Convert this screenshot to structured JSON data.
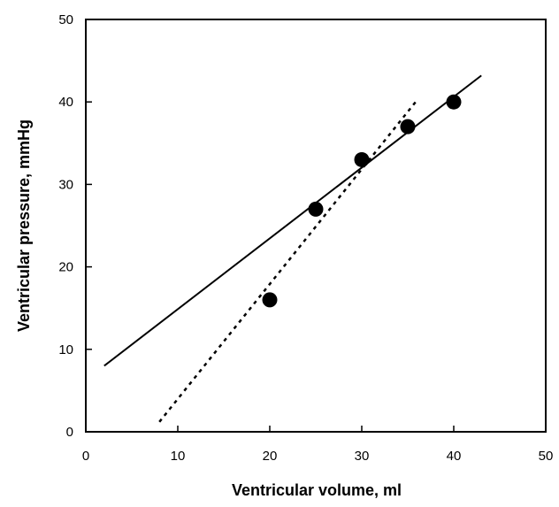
{
  "chart_data": {
    "type": "scatter",
    "title": "",
    "xlabel": "Ventricular volume, ml",
    "ylabel": "Ventricular pressure, mmHg",
    "xlim": [
      0,
      50
    ],
    "ylim": [
      0,
      50
    ],
    "x_ticks": [
      0,
      10,
      20,
      30,
      40,
      50
    ],
    "y_ticks": [
      0,
      10,
      20,
      30,
      40,
      50
    ],
    "grid": false,
    "legend": "none",
    "series": [
      {
        "type": "scatter",
        "marker": "filled-circle",
        "color": "#000000",
        "points": [
          {
            "x": 20,
            "y": 16
          },
          {
            "x": 25,
            "y": 27
          },
          {
            "x": 30,
            "y": 33
          },
          {
            "x": 35,
            "y": 37
          },
          {
            "x": 40,
            "y": 40
          }
        ]
      },
      {
        "type": "line",
        "style": "solid",
        "color": "#000000",
        "points": [
          {
            "x": 2,
            "y": 8
          },
          {
            "x": 43,
            "y": 43.2
          }
        ]
      },
      {
        "type": "line",
        "style": "dotted",
        "color": "#000000",
        "points": [
          {
            "x": 8,
            "y": 1.2
          },
          {
            "x": 36,
            "y": 40.2
          }
        ]
      }
    ]
  }
}
